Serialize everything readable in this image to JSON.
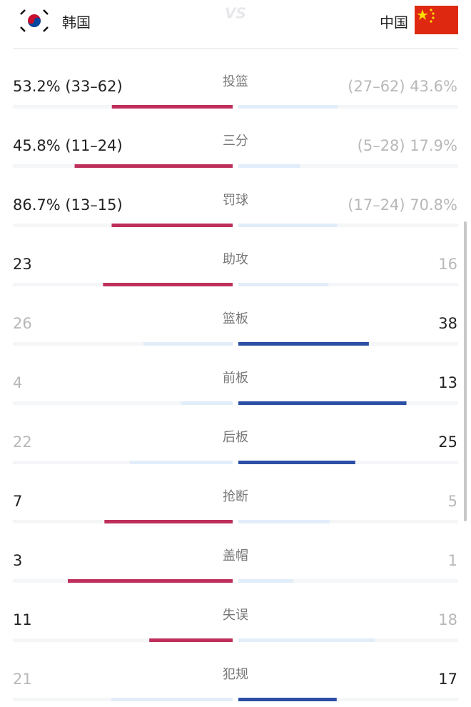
{
  "header": {
    "home_team": "韩国",
    "away_team": "中国",
    "vs": "VS"
  },
  "rows": [
    {
      "stat": "投篮",
      "home": {
        "value": 53.2,
        "label": "53.2% (33–62)"
      },
      "away": {
        "value": 43.6,
        "label": "(27–62) 43.6%"
      },
      "leader": "home"
    },
    {
      "stat": "三分",
      "home": {
        "value": 45.8,
        "label": "45.8% (11–24)"
      },
      "away": {
        "value": 17.9,
        "label": "(5–28) 17.9%"
      },
      "leader": "home"
    },
    {
      "stat": "罚球",
      "home": {
        "value": 86.7,
        "label": "86.7% (13–15)"
      },
      "away": {
        "value": 70.8,
        "label": "(17–24) 70.8%"
      },
      "leader": "home"
    },
    {
      "stat": "助攻",
      "home": 23,
      "away": 16,
      "leader": "home"
    },
    {
      "stat": "篮板",
      "home": 26,
      "away": 38,
      "leader": "away"
    },
    {
      "stat": "前板",
      "home": 4,
      "away": 13,
      "leader": "away"
    },
    {
      "stat": "后板",
      "home": 22,
      "away": 25,
      "leader": "away"
    },
    {
      "stat": "抢断",
      "home": 7,
      "away": 5,
      "leader": "home"
    },
    {
      "stat": "盖帽",
      "home": 3,
      "away": 1,
      "leader": "home"
    },
    {
      "stat": "失误",
      "home": 11,
      "away": 18,
      "leader": "home"
    },
    {
      "stat": "犯规",
      "home": 21,
      "away": 17,
      "leader": "away"
    }
  ]
}
